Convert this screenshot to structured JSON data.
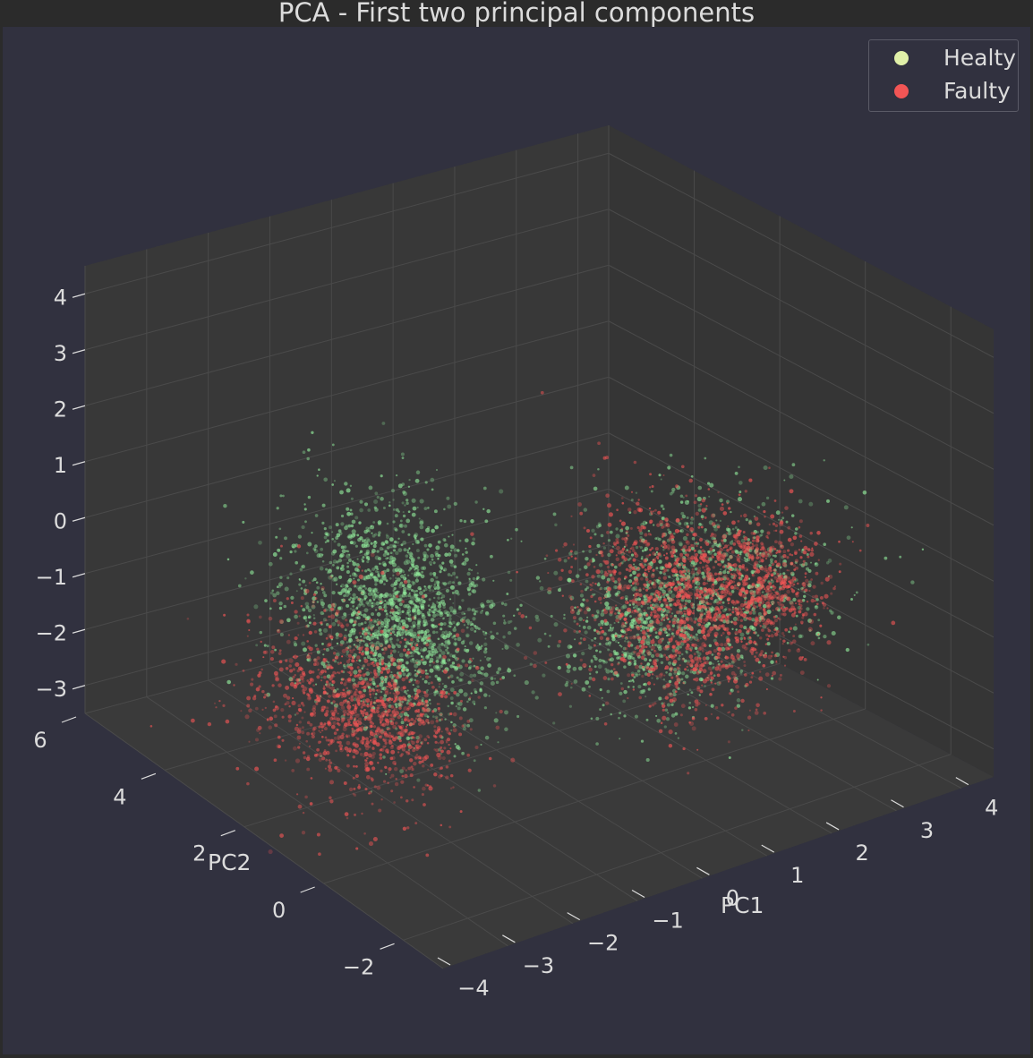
{
  "chart_data": {
    "type": "scatter",
    "projection": "3d",
    "title": "PCA - First two principal components",
    "xlabel": "PC1",
    "ylabel": "PC2",
    "zlabel": "",
    "xlim": [
      -4,
      4.5
    ],
    "ylim": [
      -3,
      6
    ],
    "zlim": [
      -3.5,
      4.5
    ],
    "x_ticks": [
      "−4",
      "−3",
      "−2",
      "−1",
      "0",
      "1",
      "2",
      "3",
      "4"
    ],
    "y_ticks": [
      "−2",
      "0",
      "2",
      "4",
      "6"
    ],
    "z_ticks": [
      "−3",
      "−2",
      "−1",
      "0",
      "1",
      "2",
      "3",
      "4"
    ],
    "legend_position": "top-right",
    "grid": true,
    "series": [
      {
        "name": "Healty",
        "color": "#90e89a",
        "legend_color": "#e0f0a8",
        "clusters": [
          {
            "cx": -3.0,
            "cy": 0.0,
            "cz": 1.2,
            "sx": 0.6,
            "sy": 0.9,
            "sz": 0.9,
            "n": 1100
          },
          {
            "cx": -2.2,
            "cy": 0.6,
            "cz": 0.0,
            "sx": 0.5,
            "sy": 0.8,
            "sz": 0.7,
            "n": 700
          },
          {
            "cx": 1.6,
            "cy": -0.8,
            "cz": 0.3,
            "sx": 0.7,
            "sy": 0.9,
            "sz": 0.6,
            "n": 700
          },
          {
            "cx": 0.9,
            "cy": -0.2,
            "cz": -0.8,
            "sx": 0.5,
            "sy": 0.7,
            "sz": 0.7,
            "n": 600
          }
        ]
      },
      {
        "name": "Faulty",
        "color": "#f25555",
        "legend_color": "#f25555",
        "clusters": [
          {
            "cx": -2.5,
            "cy": 1.6,
            "cz": -1.6,
            "sx": 0.6,
            "sy": 0.9,
            "sz": 0.8,
            "n": 900
          },
          {
            "cx": -1.2,
            "cy": 2.8,
            "cz": -3.0,
            "sx": 0.4,
            "sy": 0.6,
            "sz": 0.4,
            "n": 350
          },
          {
            "cx": 1.4,
            "cy": -0.3,
            "cz": -0.4,
            "sx": 0.6,
            "sy": 0.9,
            "sz": 0.8,
            "n": 1300
          },
          {
            "cx": 2.1,
            "cy": -1.2,
            "cz": 0.2,
            "sx": 0.4,
            "sy": 0.5,
            "sz": 0.5,
            "n": 500
          }
        ]
      }
    ]
  },
  "colors": {
    "background": "#2b2b2b",
    "pane": "#31313f",
    "grid": "#4a4a4a",
    "text": "#dcdcdc"
  }
}
